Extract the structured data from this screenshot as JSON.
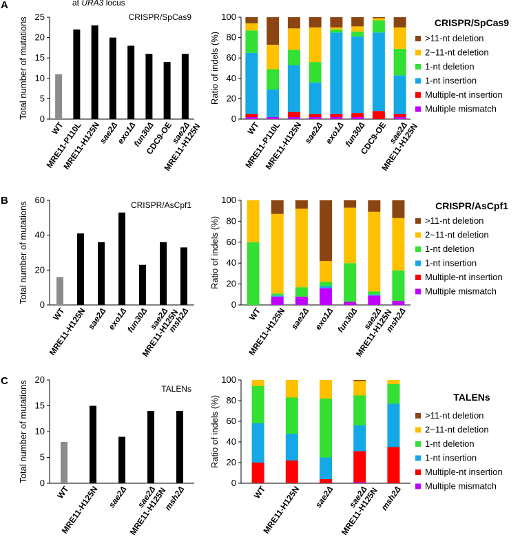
{
  "top_note": {
    "prefix": "at ",
    "gene": "URA3",
    "suffix": " locus"
  },
  "colors": {
    "wt": "#8c8c8c",
    "mutant": "#000000",
    "gt11del": "#8b4513",
    "del2_11": "#ffc000",
    "del1": "#33e033",
    "ins1": "#14a9e6",
    "multi_ins": "#ff0000",
    "multi_mm": "#c000ff"
  },
  "chart_data": [
    {
      "id": "A-count",
      "panel": "A",
      "type": "bar",
      "inset_label": "CRISPR/SpCas9",
      "ylabel": "Total number of mutations",
      "ylim": [
        0,
        25
      ],
      "yticks": [
        0,
        5,
        10,
        15,
        20,
        25
      ],
      "categories": [
        [
          "WT"
        ],
        [
          "MRE11-P110L"
        ],
        [
          "MRE11-H125N"
        ],
        [
          "sae2Δ"
        ],
        [
          "exo1Δ"
        ],
        [
          "fun30Δ"
        ],
        [
          "CDC9-OE"
        ],
        [
          "sae2Δ",
          "MRE11-H125N"
        ]
      ],
      "italic": [
        [
          false
        ],
        [
          false
        ],
        [
          false
        ],
        [
          true
        ],
        [
          true
        ],
        [
          true
        ],
        [
          false
        ],
        [
          true,
          false
        ]
      ],
      "values": [
        11,
        22,
        23,
        20,
        18,
        16,
        14,
        16
      ]
    },
    {
      "id": "A-ratio",
      "panel": "A",
      "type": "stacked-bar",
      "ylabel": "Ratio of indels (%)",
      "ylim": [
        0,
        100
      ],
      "yticks": [
        0,
        20,
        40,
        60,
        80,
        100
      ],
      "legend_title": "CRISPR/SpCas9",
      "categories": [
        [
          "WT"
        ],
        [
          "MRE11-P110L"
        ],
        [
          "MRE11-H125N"
        ],
        [
          "sae2Δ"
        ],
        [
          "exo1Δ"
        ],
        [
          "fun30Δ"
        ],
        [
          "CDC9-OE"
        ],
        [
          "sae2Δ",
          "MRE11-H125N"
        ]
      ],
      "italic": [
        [
          false
        ],
        [
          false
        ],
        [
          false
        ],
        [
          true
        ],
        [
          true
        ],
        [
          true
        ],
        [
          false
        ],
        [
          true,
          false
        ]
      ],
      "series": [
        {
          "name": "Multiple mismatch",
          "values": [
            2,
            2,
            2,
            2,
            2,
            2,
            0,
            2
          ]
        },
        {
          "name": "Multiple-nt insertion",
          "values": [
            3,
            0,
            5,
            3,
            3,
            4,
            8,
            3
          ]
        },
        {
          "name": "1-nt insertion",
          "values": [
            60,
            27,
            46,
            31,
            80,
            75,
            77,
            38
          ]
        },
        {
          "name": "1-nt deletion",
          "values": [
            22,
            20,
            15,
            20,
            3,
            5,
            12,
            26
          ]
        },
        {
          "name": "2~11-nt deletion",
          "values": [
            7,
            24,
            21,
            34,
            2,
            5,
            2,
            21
          ]
        },
        {
          "name": ">11-nt deletion",
          "values": [
            6,
            27,
            11,
            10,
            10,
            9,
            1,
            10
          ]
        }
      ]
    },
    {
      "id": "B-count",
      "panel": "B",
      "type": "bar",
      "inset_label": "CRISPR/AsCpf1",
      "ylabel": "Total number of mutations",
      "ylim": [
        0,
        60
      ],
      "yticks": [
        0,
        20,
        40,
        60
      ],
      "categories": [
        [
          "WT"
        ],
        [
          "MRE11-H125N"
        ],
        [
          "sae2Δ"
        ],
        [
          "exo1Δ"
        ],
        [
          "fun30Δ"
        ],
        [
          "sae2Δ",
          "MRE11-H125N"
        ],
        [
          "msh2Δ"
        ]
      ],
      "italic": [
        [
          false
        ],
        [
          false
        ],
        [
          true
        ],
        [
          true
        ],
        [
          true
        ],
        [
          true,
          false
        ],
        [
          true
        ]
      ],
      "values": [
        16,
        41,
        36,
        53,
        23,
        36,
        33
      ]
    },
    {
      "id": "B-ratio",
      "panel": "B",
      "type": "stacked-bar",
      "ylabel": "Ratio of indels (%)",
      "ylim": [
        0,
        100
      ],
      "yticks": [
        0,
        20,
        40,
        60,
        80,
        100
      ],
      "legend_title": "CRISPR/AsCpf1",
      "categories": [
        [
          "WT"
        ],
        [
          "MRE11-H125N"
        ],
        [
          "sae2Δ"
        ],
        [
          "exo1Δ"
        ],
        [
          "fun30Δ"
        ],
        [
          "sae2Δ",
          "MRE11-H125N"
        ],
        [
          "msh2Δ"
        ]
      ],
      "italic": [
        [
          false
        ],
        [
          false
        ],
        [
          true
        ],
        [
          true
        ],
        [
          true
        ],
        [
          true,
          false
        ],
        [
          true
        ]
      ],
      "series": [
        {
          "name": "Multiple mismatch",
          "values": [
            0,
            8,
            8,
            16,
            3,
            9,
            4
          ]
        },
        {
          "name": "Multiple-nt insertion",
          "values": [
            0,
            0,
            0,
            0,
            0,
            0,
            0
          ]
        },
        {
          "name": "1-nt insertion",
          "values": [
            0,
            1,
            0,
            2,
            0,
            1,
            0
          ]
        },
        {
          "name": "1-nt deletion",
          "values": [
            60,
            2,
            9,
            4,
            37,
            3,
            29
          ]
        },
        {
          "name": "2~11-nt deletion",
          "values": [
            40,
            76,
            75,
            20,
            53,
            76,
            50
          ]
        },
        {
          "name": ">11-nt deletion",
          "values": [
            0,
            13,
            8,
            58,
            7,
            11,
            17
          ]
        }
      ]
    },
    {
      "id": "C-count",
      "panel": "C",
      "type": "bar",
      "inset_label": "TALENs",
      "ylabel": "Total number of mutations",
      "ylim": [
        0,
        20
      ],
      "yticks": [
        0,
        5,
        10,
        15,
        20
      ],
      "categories": [
        [
          "WT"
        ],
        [
          "MRE11-H125N"
        ],
        [
          "sae2Δ"
        ],
        [
          "sae2Δ",
          "MRE11-H125N"
        ],
        [
          "msh2Δ"
        ]
      ],
      "italic": [
        [
          false
        ],
        [
          false
        ],
        [
          true
        ],
        [
          true,
          false
        ],
        [
          true
        ]
      ],
      "values": [
        8,
        15,
        9,
        14,
        14
      ]
    },
    {
      "id": "C-ratio",
      "panel": "C",
      "type": "stacked-bar",
      "ylabel": "Ratio of indels (%)",
      "ylim": [
        0,
        100
      ],
      "yticks": [
        0,
        20,
        40,
        60,
        80,
        100
      ],
      "legend_title": "TALENs",
      "categories": [
        [
          "WT"
        ],
        [
          "MRE11-H125N"
        ],
        [
          "sae2Δ"
        ],
        [
          "sae2Δ",
          "MRE11-H125N"
        ],
        [
          "msh2Δ"
        ]
      ],
      "italic": [
        [
          false
        ],
        [
          false
        ],
        [
          true
        ],
        [
          true,
          false
        ],
        [
          true
        ]
      ],
      "series": [
        {
          "name": "Multiple mismatch",
          "values": [
            0,
            0,
            0,
            1,
            0
          ]
        },
        {
          "name": "Multiple-nt insertion",
          "values": [
            20,
            22,
            4,
            30,
            35
          ]
        },
        {
          "name": "1-nt insertion",
          "values": [
            38,
            26,
            21,
            25,
            42
          ]
        },
        {
          "name": "1-nt deletion",
          "values": [
            36,
            35,
            57,
            29,
            19
          ]
        },
        {
          "name": "2~11-nt deletion",
          "values": [
            6,
            17,
            18,
            14,
            4
          ]
        },
        {
          "name": ">11-nt deletion",
          "values": [
            0,
            0,
            0,
            1,
            0
          ]
        }
      ]
    }
  ],
  "legend_order": [
    ">11-nt deletion",
    "2~11-nt deletion",
    "1-nt deletion",
    "1-nt insertion",
    "Multiple-nt insertion",
    "Multiple mismatch"
  ]
}
